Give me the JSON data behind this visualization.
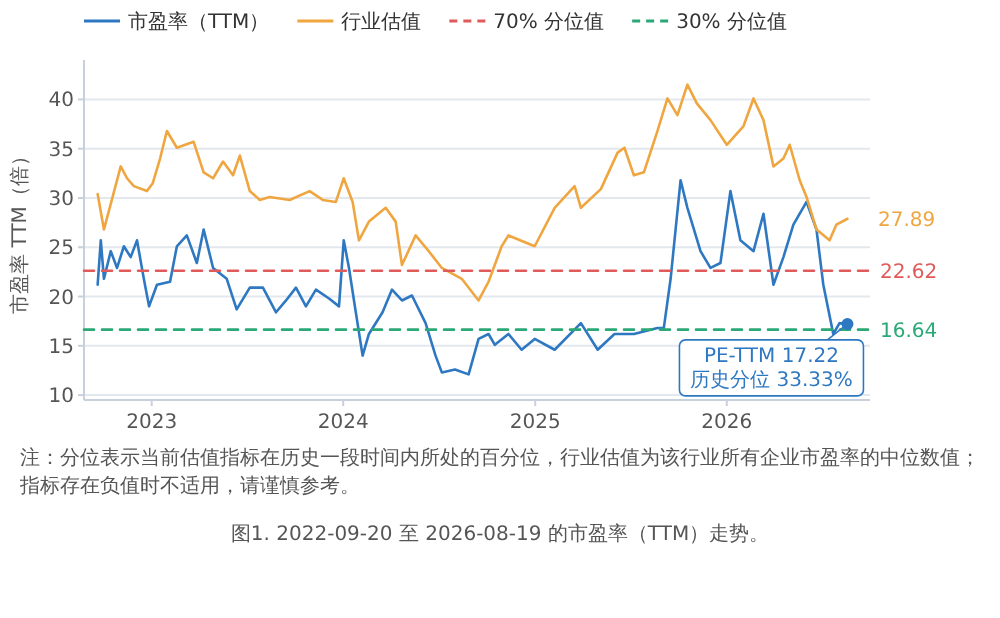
{
  "chart_data": {
    "type": "line",
    "ylabel": "市盈率 TTM（倍）",
    "xlim": [
      "2022-08-25",
      "2026-10-01"
    ],
    "ylim": [
      9.5,
      44
    ],
    "xticks": [
      {
        "value": "2023-01-01",
        "label": "2023"
      },
      {
        "value": "2024-01-01",
        "label": "2024"
      },
      {
        "value": "2025-01-01",
        "label": "2025"
      },
      {
        "value": "2026-01-01",
        "label": "2026"
      }
    ],
    "yticks": [
      10,
      15,
      20,
      25,
      30,
      35,
      40
    ],
    "grid": "y",
    "legend": "top",
    "series": [
      {
        "name": "市盈率（TTM）",
        "color": "#2e78c2",
        "x": [
          "2022-09-20",
          "2022-09-26",
          "2022-10-02",
          "2022-10-15",
          "2022-10-27",
          "2022-11-09",
          "2022-11-22",
          "2022-12-04",
          "2022-12-17",
          "2022-12-27",
          "2023-01-11",
          "2023-02-05",
          "2023-02-18",
          "2023-03-09",
          "2023-03-28",
          "2023-04-10",
          "2023-04-28",
          "2023-05-24",
          "2023-06-12",
          "2023-07-07",
          "2023-08-01",
          "2023-08-26",
          "2023-09-14",
          "2023-10-03",
          "2023-10-22",
          "2023-11-10",
          "2023-12-05",
          "2023-12-24",
          "2024-01-02",
          "2024-01-12",
          "2024-01-25",
          "2024-02-07",
          "2024-02-19",
          "2024-03-16",
          "2024-04-03",
          "2024-04-22",
          "2024-05-11",
          "2024-06-06",
          "2024-06-25",
          "2024-07-07",
          "2024-08-01",
          "2024-08-27",
          "2024-09-15",
          "2024-10-04",
          "2024-10-16",
          "2024-11-11",
          "2024-12-06",
          "2024-12-31",
          "2025-02-07",
          "2025-03-29",
          "2025-04-30",
          "2025-06-01",
          "2025-07-08",
          "2025-08-22",
          "2025-09-03",
          "2025-09-16",
          "2025-10-05",
          "2025-10-18",
          "2025-11-12",
          "2025-12-01",
          "2025-12-20",
          "2026-01-08",
          "2026-01-27",
          "2026-02-21",
          "2026-03-12",
          "2026-03-31",
          "2026-04-19",
          "2026-05-08",
          "2026-06-02",
          "2026-06-21",
          "2026-07-04",
          "2026-07-23",
          "2026-08-04",
          "2026-08-19"
        ],
        "values": [
          21.2,
          25.7,
          21.8,
          24.6,
          22.9,
          25.1,
          24,
          25.7,
          21.8,
          19,
          21.2,
          21.5,
          25.1,
          26.2,
          23.4,
          26.8,
          22.9,
          21.8,
          18.7,
          20.9,
          20.9,
          18.4,
          19.6,
          20.9,
          19,
          20.7,
          19.8,
          19,
          25.7,
          22.9,
          18.4,
          14,
          16.2,
          18.4,
          20.7,
          19.6,
          20.1,
          17.3,
          14,
          12.3,
          12.6,
          12.1,
          15.7,
          16.2,
          15.1,
          16.2,
          14.6,
          15.7,
          14.6,
          17.3,
          14.6,
          16.2,
          16.2,
          16.8,
          16.8,
          21.8,
          31.8,
          29,
          24.6,
          22.9,
          23.4,
          30.7,
          25.7,
          24.6,
          28.4,
          21.2,
          24,
          27.3,
          29.6,
          26.8,
          21.2,
          16.2,
          17.3,
          17.22
        ]
      },
      {
        "name": "行业估值",
        "color": "#f0a640",
        "x": [
          "2022-09-20",
          "2022-10-02",
          "2022-10-15",
          "2022-11-03",
          "2022-11-15",
          "2022-11-28",
          "2022-12-23",
          "2023-01-03",
          "2023-01-17",
          "2023-01-30",
          "2023-02-18",
          "2023-03-22",
          "2023-04-10",
          "2023-04-28",
          "2023-05-17",
          "2023-06-05",
          "2023-06-18",
          "2023-07-07",
          "2023-07-26",
          "2023-08-14",
          "2023-09-21",
          "2023-10-29",
          "2023-11-23",
          "2023-12-18",
          "2024-01-02",
          "2024-01-19",
          "2024-01-31",
          "2024-02-19",
          "2024-03-22",
          "2024-04-10",
          "2024-04-22",
          "2024-05-18",
          "2024-06-12",
          "2024-07-07",
          "2024-08-14",
          "2024-09-15",
          "2024-10-04",
          "2024-10-29",
          "2024-11-11",
          "2024-12-31",
          "2025-02-07",
          "2025-03-17",
          "2025-03-29",
          "2025-05-06",
          "2025-06-07",
          "2025-06-20",
          "2025-07-08",
          "2025-07-27",
          "2025-08-22",
          "2025-09-10",
          "2025-09-29",
          "2025-10-18",
          "2025-11-05",
          "2025-12-01",
          "2026-01-01",
          "2026-02-02",
          "2026-02-21",
          "2026-03-12",
          "2026-03-31",
          "2026-04-19",
          "2026-05-01",
          "2026-05-20",
          "2026-06-02",
          "2026-06-21",
          "2026-07-16",
          "2026-07-29",
          "2026-08-19"
        ],
        "values": [
          30.4,
          26.8,
          29.4,
          33.2,
          32,
          31.2,
          30.7,
          31.5,
          34,
          36.8,
          35.1,
          35.7,
          32.6,
          32,
          33.7,
          32.3,
          34.3,
          30.7,
          29.8,
          30.1,
          29.8,
          30.7,
          29.8,
          29.6,
          32,
          29.6,
          25.7,
          27.6,
          29,
          27.6,
          23.2,
          26.2,
          24.6,
          22.9,
          21.8,
          19.6,
          21.5,
          25.1,
          26.2,
          25.1,
          29,
          31.2,
          29,
          30.9,
          34.6,
          35.1,
          32.3,
          32.6,
          36.8,
          40.1,
          38.4,
          41.5,
          39.6,
          37.9,
          35.4,
          37.3,
          40.1,
          37.9,
          33.2,
          34,
          35.4,
          31.8,
          30.1,
          26.8,
          25.7,
          27.3,
          27.89
        ],
        "value_labels": [
          null,
          null,
          null,
          null,
          null,
          null,
          null,
          null,
          null,
          null,
          null,
          null,
          null,
          null,
          null,
          null,
          null,
          null,
          null,
          null,
          null,
          null,
          null,
          null,
          null,
          null,
          null,
          null,
          null,
          null,
          null,
          null,
          null,
          null,
          null,
          null,
          null,
          null,
          null,
          null,
          null,
          null,
          null,
          null,
          null,
          null,
          null,
          null,
          null,
          null,
          null,
          null,
          null,
          null,
          null,
          null,
          null,
          null,
          null,
          null,
          null,
          null,
          null,
          null,
          null,
          null,
          "27.89"
        ]
      },
      {
        "name": "70% 分位值",
        "color": "#e05a5a",
        "line_style": "dashed",
        "x": [
          "2022-08-25",
          "2026-10-01"
        ],
        "values": [
          22.62,
          22.62
        ],
        "value_labels": [
          null,
          "22.62"
        ]
      },
      {
        "name": "30% 分位值",
        "color": "#2aa876",
        "line_style": "dashed",
        "x": [
          "2022-08-25",
          "2026-10-01"
        ],
        "values": [
          16.64,
          16.64
        ],
        "value_labels": [
          null,
          "16.64"
        ]
      }
    ],
    "annotations": [
      {
        "text": "PE-TTM 17.22\n历史分位 33.33%",
        "x": "2026-08-19",
        "y": 17.22
      },
      "注：分位表示当前估值指标在历史一段时间内所处的百分位，行业估值为该行业所有企业市盈率的中位数值；指标存在负值时不适用，请谨慎参考。",
      "图1. 2022-09-20 至 2026-08-19 的市盈率（TTM）走势。"
    ]
  }
}
